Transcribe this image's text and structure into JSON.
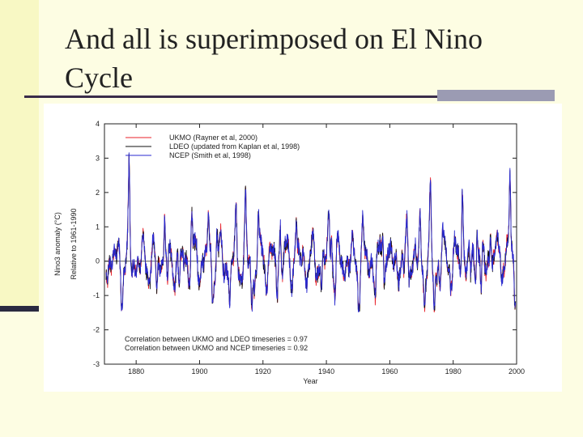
{
  "slide": {
    "title_line1": "And all is superimposed on El Nino",
    "title_line2": "Cycle"
  },
  "chart_data": {
    "type": "line",
    "title": "",
    "xlabel": "Year",
    "ylabel": "Nino3 anomaly (°C)",
    "ylabel2": "Relative to 1961-1990",
    "xlim": [
      1870,
      2000
    ],
    "ylim": [
      -3,
      4
    ],
    "x_ticks": [
      1880,
      1900,
      1920,
      1940,
      1960,
      1980,
      2000
    ],
    "y_ticks": [
      -3,
      -2,
      -1,
      0,
      1,
      2,
      3,
      4
    ],
    "grid": false,
    "zero_line": true,
    "legend_position": "top-left",
    "series": [
      {
        "name": "UKMO (Rayner et al, 2000)",
        "color": "#e8202a",
        "seed": 11
      },
      {
        "name": "LDEO (updated from Kaplan et al, 1998)",
        "color": "#111111",
        "seed": 23
      },
      {
        "name": "NCEP (Smith et al, 1998)",
        "color": "#2a2ad0",
        "seed": 37
      }
    ],
    "events": [
      {
        "x": 1877.8,
        "y": 3.0
      },
      {
        "x": 1889.0,
        "y": 2.2
      },
      {
        "x": 1897.5,
        "y": 1.6
      },
      {
        "x": 1902.8,
        "y": 1.8
      },
      {
        "x": 1905.5,
        "y": 1.2
      },
      {
        "x": 1911.5,
        "y": 1.3
      },
      {
        "x": 1914.5,
        "y": 1.6
      },
      {
        "x": 1918.5,
        "y": 1.7
      },
      {
        "x": 1925.5,
        "y": 1.7
      },
      {
        "x": 1930.5,
        "y": 1.4
      },
      {
        "x": 1940.8,
        "y": 1.5
      },
      {
        "x": 1941.6,
        "y": 1.4
      },
      {
        "x": 1951.5,
        "y": 1.0
      },
      {
        "x": 1957.8,
        "y": 1.7
      },
      {
        "x": 1965.5,
        "y": 1.8
      },
      {
        "x": 1969.5,
        "y": 1.2
      },
      {
        "x": 1972.8,
        "y": 2.0
      },
      {
        "x": 1976.7,
        "y": 1.2
      },
      {
        "x": 1982.9,
        "y": 2.9
      },
      {
        "x": 1987.5,
        "y": 1.8
      },
      {
        "x": 1991.8,
        "y": 1.6
      },
      {
        "x": 1994.8,
        "y": 1.0
      },
      {
        "x": 1997.9,
        "y": 3.5
      },
      {
        "x": 1875.5,
        "y": -1.3
      },
      {
        "x": 1886.5,
        "y": -1.2
      },
      {
        "x": 1889.9,
        "y": -1.5
      },
      {
        "x": 1893.5,
        "y": -1.2
      },
      {
        "x": 1904.0,
        "y": -1.4
      },
      {
        "x": 1909.5,
        "y": -1.5
      },
      {
        "x": 1916.5,
        "y": -1.4
      },
      {
        "x": 1917.3,
        "y": -1.1
      },
      {
        "x": 1924.5,
        "y": -1.1
      },
      {
        "x": 1938.5,
        "y": -1.0
      },
      {
        "x": 1942.8,
        "y": -1.1
      },
      {
        "x": 1950.3,
        "y": -1.3
      },
      {
        "x": 1955.5,
        "y": -1.3
      },
      {
        "x": 1964.5,
        "y": -1.1
      },
      {
        "x": 1971.0,
        "y": -1.4
      },
      {
        "x": 1974.0,
        "y": -1.5
      },
      {
        "x": 1975.8,
        "y": -1.3
      },
      {
        "x": 1985.5,
        "y": -0.9
      },
      {
        "x": 1988.8,
        "y": -1.6
      },
      {
        "x": 1999.5,
        "y": -1.3
      }
    ],
    "annotations": [
      "Correlation between UKMO and LDEO timeseries = 0.97",
      "Correlation between UKMO and NCEP timeseries = 0.92"
    ]
  }
}
